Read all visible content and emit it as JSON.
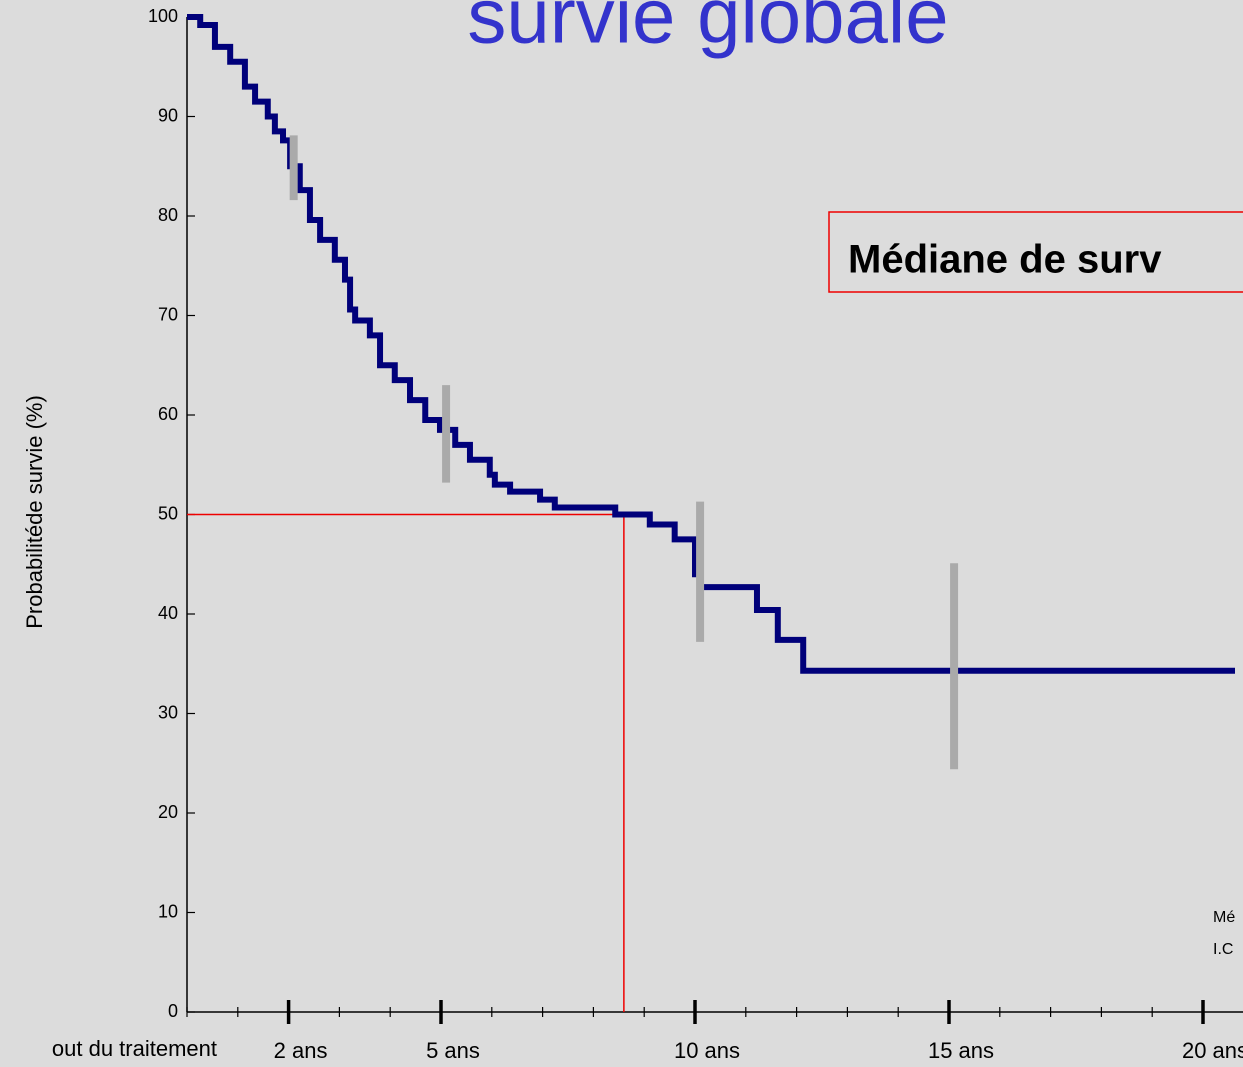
{
  "chart_data": {
    "type": "step",
    "title": "survie globale",
    "ylabel": "Probabilitéde survie (%)",
    "xorigin_label": "out du traitement",
    "annotation": "Médiane de surv",
    "footnotes": [
      "Mé",
      "I.C"
    ],
    "xlim": [
      0,
      20.8
    ],
    "ylim": [
      0,
      100
    ],
    "yticks": [
      0,
      10,
      20,
      30,
      40,
      50,
      60,
      70,
      80,
      90,
      100
    ],
    "xticks": [
      {
        "value": 2,
        "label": "2 ans"
      },
      {
        "value": 5,
        "label": "5 ans"
      },
      {
        "value": 10,
        "label": "10 ans"
      },
      {
        "value": 15,
        "label": "15 ans"
      },
      {
        "value": 20,
        "label": "20 ans"
      }
    ],
    "xticks_minor": [
      0,
      1,
      3,
      4,
      6,
      7,
      8,
      9,
      11,
      12,
      13,
      14,
      16,
      17,
      18,
      19
    ],
    "color": "#00007a",
    "x": [
      0,
      0.26,
      0.55,
      0.85,
      1.14,
      1.34,
      1.59,
      1.73,
      1.89,
      2.03,
      2.22,
      2.42,
      2.62,
      2.91,
      3.11,
      3.21,
      3.31,
      3.6,
      3.8,
      4.09,
      4.39,
      4.69,
      4.98,
      5.28,
      5.57,
      5.96,
      6.06,
      6.36,
      6.95,
      7.24,
      8.43,
      9.11,
      9.6,
      10.0,
      10.1,
      11.22,
      11.63,
      12.13,
      20.63
    ],
    "values": [
      100,
      99.2,
      97,
      95.5,
      93,
      91.5,
      90,
      88.5,
      87.6,
      85,
      82.6,
      79.6,
      77.6,
      75.6,
      73.6,
      70.6,
      69.5,
      68,
      65,
      63.5,
      61.5,
      59.5,
      58.5,
      57,
      55.5,
      54,
      53,
      52.3,
      51.5,
      50.7,
      50,
      49,
      47.5,
      44,
      42.7,
      40.4,
      37.4,
      34.3,
      34.3
    ],
    "ci": {
      "color": "#aaaaaa",
      "x": [
        2.1,
        5.1,
        10.1,
        15.1
      ],
      "low": [
        81.6,
        53.2,
        37.2,
        24.4
      ],
      "high": [
        88.1,
        63,
        51.3,
        45.1
      ]
    },
    "median": {
      "color": "#ee0000",
      "x": 8.6,
      "y": 50
    }
  }
}
